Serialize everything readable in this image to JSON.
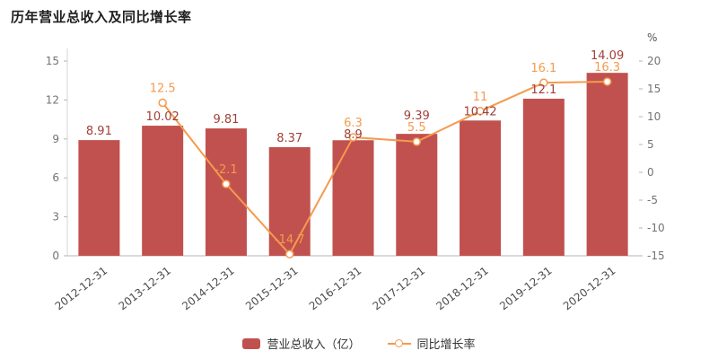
{
  "title": "历年营业总收入及同比增长率",
  "legend": [
    {
      "label": "营业总收入（亿）",
      "color": "#c1514e",
      "marker": "bar-swatch"
    },
    {
      "label": "同比增长率",
      "color": "#f39b4e",
      "marker": "line-circle"
    }
  ],
  "chart_data": {
    "type": "bar+line",
    "title": "历年营业总收入及同比增长率",
    "categories": [
      "2012-12-31",
      "2013-12-31",
      "2014-12-31",
      "2015-12-31",
      "2016-12-31",
      "2017-12-31",
      "2018-12-31",
      "2019-12-31",
      "2020-12-31"
    ],
    "series": [
      {
        "name": "营业总收入（亿）",
        "type": "bar",
        "axis": "left",
        "color": "#c1514e",
        "label_color": "#a23f38",
        "values": [
          8.91,
          10.02,
          9.81,
          8.37,
          8.9,
          9.39,
          10.42,
          12.1,
          14.09
        ]
      },
      {
        "name": "同比增长率",
        "type": "line",
        "axis": "right",
        "color": "#f39b4e",
        "values": [
          null,
          12.5,
          -2.1,
          -14.7,
          6.3,
          5.5,
          11,
          16.1,
          16.3
        ]
      }
    ],
    "left_axis": {
      "min": 0,
      "max": 15,
      "ticks": [
        0,
        3,
        6,
        9,
        12,
        15
      ]
    },
    "right_axis": {
      "min": -15,
      "max": 20,
      "ticks": [
        -15,
        -10,
        -5,
        0,
        5,
        10,
        15,
        20
      ],
      "unit": "%"
    },
    "grid": false,
    "legend_position": "bottom"
  }
}
